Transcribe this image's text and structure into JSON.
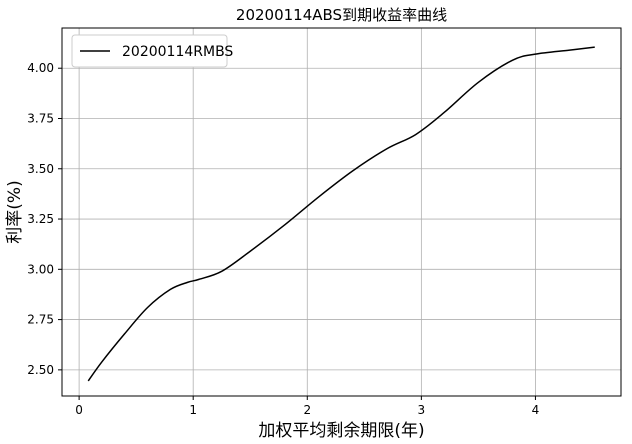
{
  "chart_data": {
    "type": "line",
    "title": "20200114ABS到期收益率曲线",
    "xlabel": "加权平均剩余期限(年)",
    "ylabel": "利率(%)",
    "xlim": [
      -0.15,
      4.75
    ],
    "ylim": [
      2.37,
      4.2
    ],
    "xticks": [
      0,
      1,
      2,
      3,
      4
    ],
    "yticks": [
      2.5,
      2.75,
      3.0,
      3.25,
      3.5,
      3.75,
      4.0
    ],
    "ytick_labels": [
      "2.50",
      "2.75",
      "3.00",
      "3.25",
      "3.50",
      "3.75",
      "4.00"
    ],
    "grid": true,
    "legend_position": "upper-left",
    "series": [
      {
        "name": "20200114RMBS",
        "color": "#000000",
        "x": [
          0.08,
          0.2,
          0.4,
          0.6,
          0.8,
          0.95,
          1.05,
          1.25,
          1.5,
          1.8,
          2.1,
          2.4,
          2.7,
          2.95,
          3.2,
          3.5,
          3.8,
          4.0,
          4.3,
          4.52
        ],
        "y": [
          2.445,
          2.54,
          2.68,
          2.81,
          2.9,
          2.935,
          2.95,
          2.99,
          3.09,
          3.22,
          3.36,
          3.49,
          3.6,
          3.67,
          3.78,
          3.93,
          4.04,
          4.07,
          4.09,
          4.105
        ]
      }
    ]
  }
}
